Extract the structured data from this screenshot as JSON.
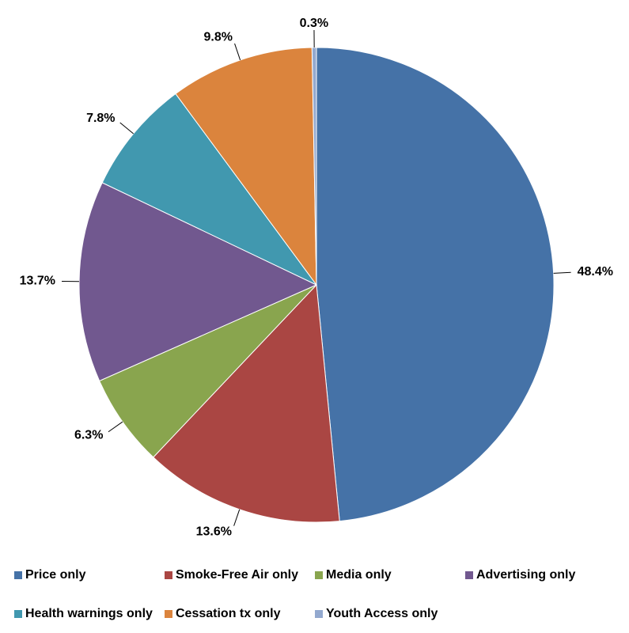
{
  "chart_data": {
    "type": "pie",
    "categories": [
      "Price only",
      "Smoke-Free Air only",
      "Media only",
      "Advertising only",
      "Health warnings only",
      "Cessation tx only",
      "Youth Access only"
    ],
    "values": [
      48.4,
      13.6,
      6.3,
      13.7,
      7.8,
      9.8,
      0.3
    ],
    "value_labels": [
      "48.4%",
      "13.6%",
      "6.3%",
      "13.7%",
      "7.8%",
      "9.8%",
      "0.3%"
    ],
    "colors": [
      "#4572a7",
      "#aa4643",
      "#89a54e",
      "#71588f",
      "#4198af",
      "#db843d",
      "#93a9cf"
    ]
  }
}
